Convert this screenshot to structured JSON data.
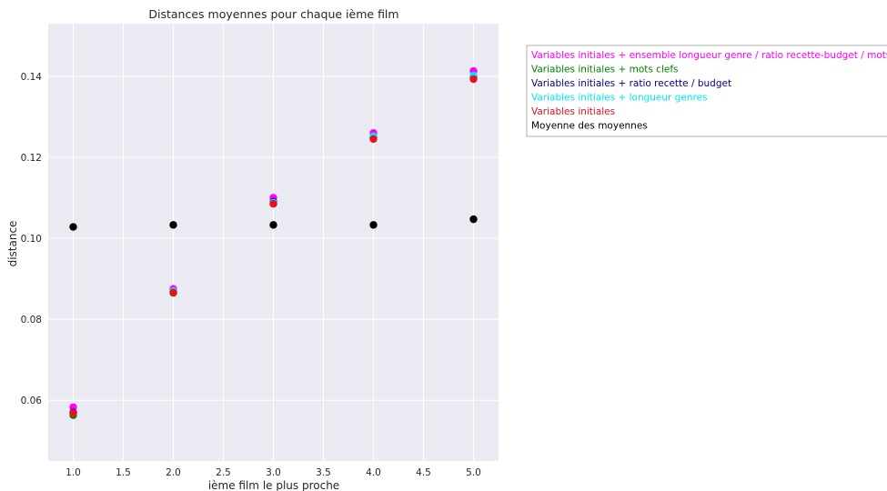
{
  "chart_data": {
    "type": "scatter",
    "title": "Distances moyennes pour chaque ième film",
    "xlabel": "ième film le plus proche",
    "ylabel": "distance",
    "xlim": [
      0.75,
      5.25
    ],
    "ylim": [
      0.045,
      0.153
    ],
    "xticks": [
      1.0,
      1.5,
      2.0,
      2.5,
      3.0,
      3.5,
      4.0,
      4.5,
      5.0
    ],
    "xtick_labels": [
      "1.0",
      "1.5",
      "2.0",
      "2.5",
      "3.0",
      "3.5",
      "4.0",
      "4.5",
      "5.0"
    ],
    "yticks": [
      0.06,
      0.08,
      0.1,
      0.12,
      0.14
    ],
    "ytick_labels": [
      "0.06",
      "0.08",
      "0.10",
      "0.12",
      "0.14"
    ],
    "grid": true,
    "legend_position": "outside right, top",
    "x": [
      1,
      2,
      3,
      4,
      5
    ],
    "series": [
      {
        "name": "Variables initiales + ensemble longueur genre / ratio recette-budget / mots clefs",
        "color": "#ff00ff",
        "values": [
          0.0583,
          0.0875,
          0.11,
          0.126,
          0.1413
        ]
      },
      {
        "name": "Variables initiales + mots clefs",
        "color": "#008000",
        "values": [
          0.0563,
          0.0865,
          0.1085,
          0.125,
          0.1398
        ]
      },
      {
        "name": "Variables initiales + ratio recette / budget",
        "color": "#00008b",
        "values": [
          0.057,
          0.0868,
          0.109,
          0.1248,
          0.14
        ]
      },
      {
        "name": "Variables initiales + longueur genres",
        "color": "#00e5ee",
        "values": [
          0.0568,
          0.087,
          0.1088,
          0.1252,
          0.1402
        ]
      },
      {
        "name": "Variables initiales",
        "color": "#e8101c",
        "values": [
          0.0568,
          0.0866,
          0.1085,
          0.1245,
          0.1393
        ]
      },
      {
        "name": "Moyenne des moyennes",
        "color": "#000000",
        "values": [
          0.1028,
          0.1033,
          0.1033,
          0.1033,
          0.1047
        ]
      }
    ]
  }
}
